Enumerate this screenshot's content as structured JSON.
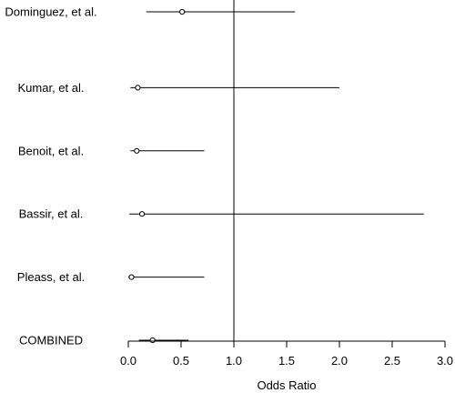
{
  "chart_data": {
    "type": "forest",
    "xlabel": "Odds Ratio",
    "xlim": [
      0.0,
      3.0
    ],
    "xticks": [
      0.0,
      0.5,
      1.0,
      1.5,
      2.0,
      2.5,
      3.0
    ],
    "xtick_labels": [
      "0.0",
      "0.5",
      "1.0",
      "1.5",
      "2.0",
      "2.5",
      "3.0"
    ],
    "reference_line": 1.0,
    "studies": [
      {
        "label": "Dominguez, et al.",
        "or": 0.51,
        "lower": 0.17,
        "upper": 1.58
      },
      {
        "label": "Kumar, et al.",
        "or": 0.09,
        "lower": 0.02,
        "upper": 2.0
      },
      {
        "label": "Benoit, et al.",
        "or": 0.08,
        "lower": 0.02,
        "upper": 0.72
      },
      {
        "label": "Bassir, et al.",
        "or": 0.13,
        "lower": 0.01,
        "upper": 2.8
      },
      {
        "label": "Pleass, et al.",
        "or": 0.03,
        "lower": 0.0,
        "upper": 0.72
      },
      {
        "label": "COMBINED",
        "or": 0.23,
        "lower": 0.1,
        "upper": 0.57
      }
    ]
  }
}
